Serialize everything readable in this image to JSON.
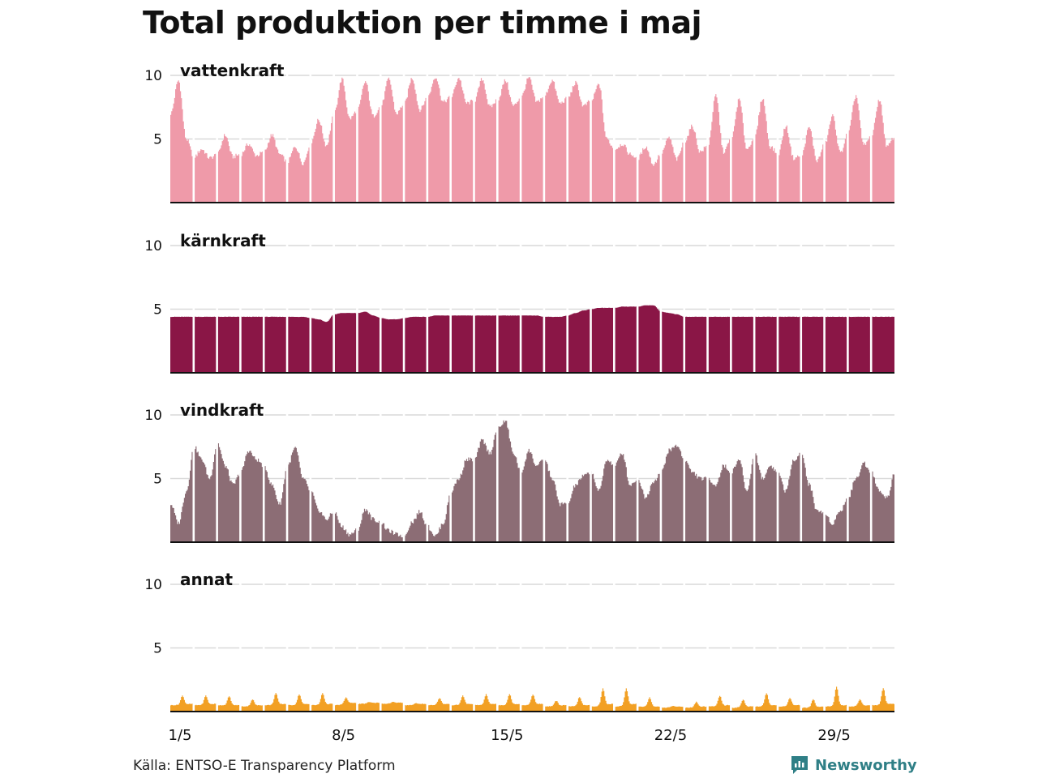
{
  "title": "Total produktion per timme i maj",
  "source": "Källa: ENTSO-E Transparency Platform",
  "brand": {
    "name": "Newsworthy",
    "icon": "newsworthy-logo-icon",
    "color": "#2f7f86"
  },
  "chart_data": {
    "type": "area",
    "x_unit": "hour",
    "x_range": [
      "2023-05-01T00:00",
      "2023-05-31T23:00"
    ],
    "x_ticks": [
      "1/5",
      "8/5",
      "15/5",
      "22/5",
      "29/5"
    ],
    "y_ticks": [
      5,
      10
    ],
    "ylim": [
      0,
      10
    ],
    "grid": true,
    "day_separators": true,
    "series": [
      {
        "name": "vattenkraft",
        "color": "#ef9aa9",
        "daily_profile": [
          [
            7.0,
            9.6,
            5.0
          ],
          [
            3.6,
            4.2,
            3.5
          ],
          [
            3.8,
            5.3,
            3.6
          ],
          [
            3.8,
            4.6,
            3.7
          ],
          [
            4.0,
            5.3,
            3.8
          ],
          [
            3.2,
            4.4,
            3.1
          ],
          [
            4.7,
            6.5,
            4.5
          ],
          [
            7.0,
            9.7,
            6.6
          ],
          [
            7.3,
            9.5,
            6.8
          ],
          [
            7.6,
            9.7,
            7.0
          ],
          [
            7.8,
            9.8,
            7.3
          ],
          [
            8.3,
            9.9,
            7.9
          ],
          [
            8.3,
            9.8,
            7.8
          ],
          [
            8.0,
            9.7,
            7.5
          ],
          [
            8.1,
            9.6,
            7.6
          ],
          [
            8.3,
            9.8,
            7.9
          ],
          [
            8.4,
            9.6,
            7.8
          ],
          [
            8.2,
            9.4,
            7.6
          ],
          [
            8.0,
            9.3,
            5.0
          ],
          [
            4.2,
            4.6,
            3.8
          ],
          [
            3.5,
            4.4,
            3.0
          ],
          [
            3.9,
            5.1,
            3.4
          ],
          [
            4.8,
            6.0,
            4.0
          ],
          [
            4.5,
            8.4,
            4.0
          ],
          [
            5.0,
            8.1,
            4.2
          ],
          [
            5.2,
            8.2,
            4.4
          ],
          [
            3.8,
            6.0,
            3.5
          ],
          [
            3.7,
            5.9,
            3.3
          ],
          [
            4.6,
            6.8,
            3.9
          ],
          [
            5.5,
            8.4,
            4.5
          ],
          [
            5.2,
            8.1,
            4.4
          ]
        ]
      },
      {
        "name": "kärnkraft",
        "color": "#8a1646",
        "daily_profile": [
          [
            4.4,
            4.4,
            4.4
          ],
          [
            4.4,
            4.4,
            4.4
          ],
          [
            4.4,
            4.4,
            4.4
          ],
          [
            4.4,
            4.4,
            4.4
          ],
          [
            4.4,
            4.4,
            4.4
          ],
          [
            4.4,
            4.4,
            4.4
          ],
          [
            4.3,
            4.2,
            4.0
          ],
          [
            4.6,
            4.7,
            4.7
          ],
          [
            4.7,
            4.8,
            4.5
          ],
          [
            4.3,
            4.2,
            4.2
          ],
          [
            4.3,
            4.4,
            4.4
          ],
          [
            4.4,
            4.5,
            4.5
          ],
          [
            4.5,
            4.5,
            4.5
          ],
          [
            4.5,
            4.5,
            4.5
          ],
          [
            4.5,
            4.5,
            4.5
          ],
          [
            4.5,
            4.5,
            4.5
          ],
          [
            4.4,
            4.4,
            4.4
          ],
          [
            4.5,
            4.7,
            4.9
          ],
          [
            5.0,
            5.1,
            5.1
          ],
          [
            5.1,
            5.2,
            5.2
          ],
          [
            5.2,
            5.3,
            5.3
          ],
          [
            4.8,
            4.7,
            4.6
          ],
          [
            4.4,
            4.4,
            4.4
          ],
          [
            4.4,
            4.4,
            4.4
          ],
          [
            4.4,
            4.4,
            4.4
          ],
          [
            4.4,
            4.4,
            4.4
          ],
          [
            4.4,
            4.4,
            4.4
          ],
          [
            4.4,
            4.4,
            4.4
          ],
          [
            4.4,
            4.4,
            4.4
          ],
          [
            4.4,
            4.4,
            4.4
          ],
          [
            4.4,
            4.4,
            4.4
          ]
        ]
      },
      {
        "name": "vindkraft",
        "color": "#8c6d75",
        "daily_profile": [
          [
            3.0,
            1.5,
            4.0
          ],
          [
            7.5,
            6.5,
            5.0
          ],
          [
            7.8,
            6.0,
            4.5
          ],
          [
            5.5,
            7.2,
            6.5
          ],
          [
            6.0,
            4.5,
            3.0
          ],
          [
            6.0,
            7.4,
            5.0
          ],
          [
            4.0,
            2.5,
            1.8
          ],
          [
            2.4,
            1.2,
            0.6
          ],
          [
            1.0,
            2.6,
            1.8
          ],
          [
            1.5,
            0.9,
            0.6
          ],
          [
            0.5,
            1.6,
            2.4
          ],
          [
            1.2,
            0.5,
            1.5
          ],
          [
            4.0,
            5.0,
            6.5
          ],
          [
            6.5,
            8.0,
            7.0
          ],
          [
            9.0,
            9.5,
            7.0
          ],
          [
            5.5,
            7.2,
            6.0
          ],
          [
            6.5,
            5.0,
            3.0
          ],
          [
            3.0,
            4.5,
            5.2
          ],
          [
            5.5,
            4.0,
            6.5
          ],
          [
            6.0,
            7.0,
            4.5
          ],
          [
            5.0,
            3.5,
            4.8
          ],
          [
            5.5,
            7.2,
            7.6
          ],
          [
            6.5,
            5.5,
            5.0
          ],
          [
            5.0,
            4.5,
            6.0
          ],
          [
            5.5,
            6.5,
            4.0
          ],
          [
            7.0,
            5.0,
            6.0
          ],
          [
            5.5,
            4.0,
            6.5
          ],
          [
            7.0,
            4.5,
            2.5
          ],
          [
            2.2,
            1.5,
            2.5
          ],
          [
            3.5,
            5.0,
            6.2
          ],
          [
            5.5,
            4.0,
            3.5
          ]
        ]
      },
      {
        "name": "annat",
        "color": "#f2a024",
        "daily_profile": [
          [
            0.5,
            1.3,
            0.6
          ],
          [
            0.5,
            1.3,
            0.6
          ],
          [
            0.5,
            1.2,
            0.5
          ],
          [
            0.4,
            1.0,
            0.5
          ],
          [
            0.5,
            1.5,
            0.6
          ],
          [
            0.5,
            1.4,
            0.6
          ],
          [
            0.5,
            1.5,
            0.6
          ],
          [
            0.5,
            1.2,
            0.7
          ],
          [
            0.6,
            0.8,
            0.7
          ],
          [
            0.6,
            0.8,
            0.7
          ],
          [
            0.5,
            0.7,
            0.6
          ],
          [
            0.5,
            1.1,
            0.6
          ],
          [
            0.5,
            1.3,
            0.6
          ],
          [
            0.5,
            1.4,
            0.6
          ],
          [
            0.5,
            1.4,
            0.6
          ],
          [
            0.5,
            1.4,
            0.6
          ],
          [
            0.4,
            0.9,
            0.5
          ],
          [
            0.4,
            1.2,
            0.5
          ],
          [
            0.4,
            1.9,
            0.6
          ],
          [
            0.4,
            1.9,
            0.6
          ],
          [
            0.4,
            1.1,
            0.4
          ],
          [
            0.3,
            0.5,
            0.4
          ],
          [
            0.3,
            0.8,
            0.4
          ],
          [
            0.4,
            1.3,
            0.5
          ],
          [
            0.3,
            1.0,
            0.4
          ],
          [
            0.4,
            1.5,
            0.5
          ],
          [
            0.4,
            1.1,
            0.5
          ],
          [
            0.3,
            1.0,
            0.4
          ],
          [
            0.4,
            2.0,
            0.5
          ],
          [
            0.4,
            1.0,
            0.5
          ],
          [
            0.5,
            1.9,
            0.6
          ]
        ]
      }
    ]
  }
}
